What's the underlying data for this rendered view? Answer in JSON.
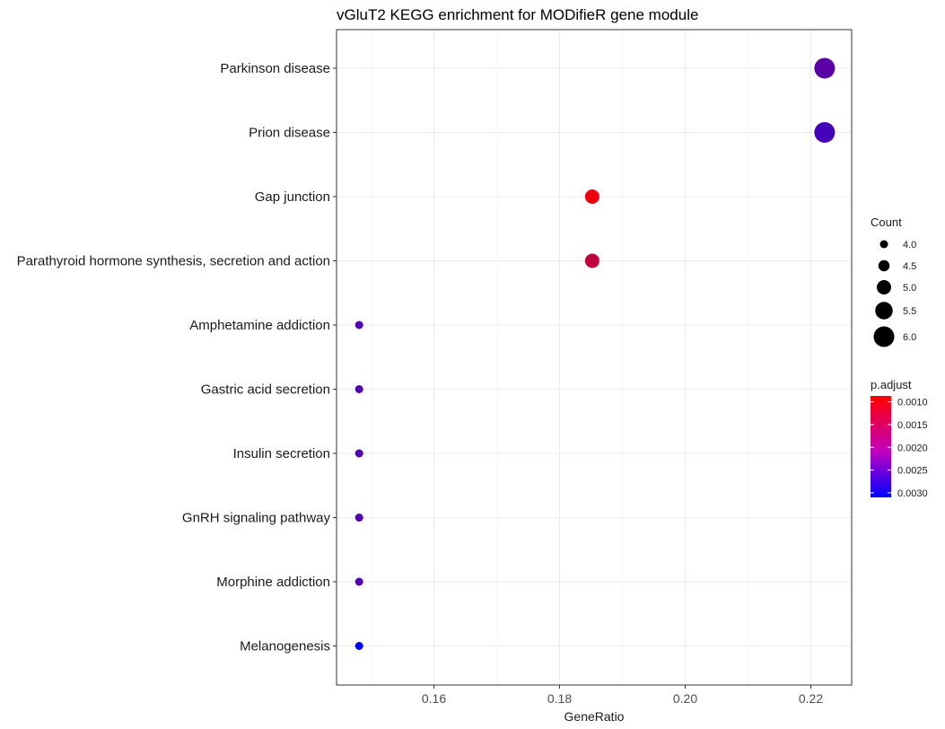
{
  "chart_data": {
    "type": "scatter",
    "title": "vGluT2 KEGG enrichment for MODifieR gene module",
    "xlabel": "GeneRatio",
    "ylabel": "",
    "xlim": [
      0.1445,
      0.2265
    ],
    "x_ticks": [
      0.16,
      0.18,
      0.2,
      0.22
    ],
    "x_tick_labels": [
      "0.16",
      "0.18",
      "0.20",
      "0.22"
    ],
    "grid": true,
    "categories": [
      "Parkinson disease",
      "Prion disease",
      "Gap junction",
      "Parathyroid hormone synthesis, secretion and action",
      "Amphetamine addiction",
      "Gastric acid secretion",
      "Insulin secretion",
      "GnRH signaling pathway",
      "Morphine addiction",
      "Melanogenesis"
    ],
    "points": [
      {
        "category": "Parkinson disease",
        "gene_ratio": 0.2222,
        "count": 6,
        "p_adjust": 0.0023
      },
      {
        "category": "Prion disease",
        "gene_ratio": 0.2222,
        "count": 6,
        "p_adjust": 0.0025
      },
      {
        "category": "Gap junction",
        "gene_ratio": 0.1852,
        "count": 5,
        "p_adjust": 0.001
      },
      {
        "category": "Parathyroid hormone synthesis, secretion and action",
        "gene_ratio": 0.1852,
        "count": 5,
        "p_adjust": 0.0014
      },
      {
        "category": "Amphetamine addiction",
        "gene_ratio": 0.1481,
        "count": 4,
        "p_adjust": 0.0024
      },
      {
        "category": "Gastric acid secretion",
        "gene_ratio": 0.1481,
        "count": 4,
        "p_adjust": 0.0024
      },
      {
        "category": "Insulin secretion",
        "gene_ratio": 0.1481,
        "count": 4,
        "p_adjust": 0.0024
      },
      {
        "category": "GnRH signaling pathway",
        "gene_ratio": 0.1481,
        "count": 4,
        "p_adjust": 0.0024
      },
      {
        "category": "Morphine addiction",
        "gene_ratio": 0.1481,
        "count": 4,
        "p_adjust": 0.0024
      },
      {
        "category": "Melanogenesis",
        "gene_ratio": 0.1481,
        "count": 4,
        "p_adjust": 0.0031
      }
    ],
    "size_legend": {
      "title": "Count",
      "values": [
        4.0,
        4.5,
        5.0,
        5.5,
        6.0
      ],
      "labels": [
        "4.0",
        "4.5",
        "5.0",
        "5.5",
        "6.0"
      ]
    },
    "color_legend": {
      "title": "p.adjust",
      "range": [
        0.00087,
        0.0031
      ],
      "ticks": [
        0.001,
        0.0015,
        0.002,
        0.0025,
        0.003
      ],
      "tick_labels": [
        "0.0010",
        "0.0015",
        "0.0020",
        "0.0025",
        "0.0030"
      ],
      "high_color": "#ff0000",
      "low_color": "#0000ff"
    },
    "legend_position": "right"
  }
}
